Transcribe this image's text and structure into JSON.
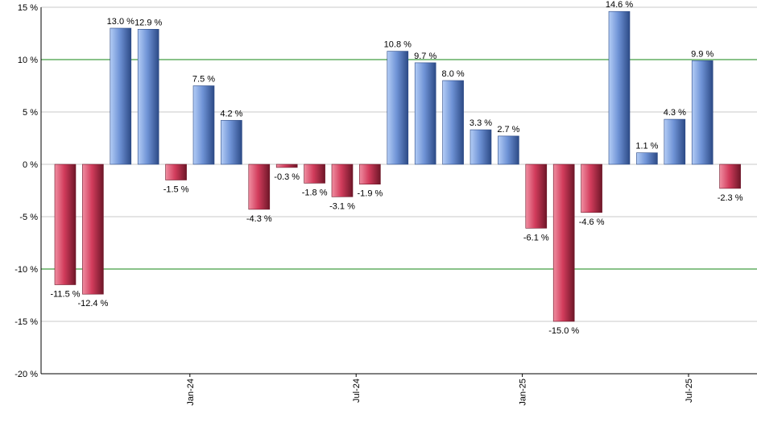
{
  "chart_data": {
    "type": "bar",
    "title": "",
    "xlabel": "",
    "ylabel": "",
    "ylim": [
      -20,
      15
    ],
    "y_ticks": [
      15,
      10,
      5,
      0,
      -5,
      -10,
      -15,
      -20
    ],
    "y_tick_labels": [
      "15 %",
      "10 %",
      "5 %",
      "0 %",
      "-5 %",
      "-10 %",
      "-15 %",
      "-20 %"
    ],
    "reference_lines": [
      10,
      -10
    ],
    "grid": true,
    "x_tick_labels": [
      {
        "label": "Jan-24",
        "after_bar": 4
      },
      {
        "label": "Jul-24",
        "after_bar": 10
      },
      {
        "label": "Jan-25",
        "after_bar": 16
      },
      {
        "label": "Jul-25",
        "after_bar": 22
      }
    ],
    "values": [
      -11.5,
      -12.4,
      13.0,
      12.9,
      -1.5,
      7.5,
      4.2,
      -4.3,
      -0.3,
      -1.8,
      -3.1,
      -1.9,
      10.8,
      9.7,
      8.0,
      3.3,
      2.7,
      -6.1,
      -15.0,
      -4.6,
      14.6,
      1.1,
      4.3,
      9.9,
      -2.3
    ],
    "labels": [
      "-11.5 %",
      "-12.4 %",
      "13.0 %",
      "12.9 %",
      "-1.5 %",
      "7.5 %",
      "4.2 %",
      "-4.3 %",
      "-0.3 %",
      "-1.8 %",
      "-3.1 %",
      "-1.9 %",
      "10.8 %",
      "9.7 %",
      "8.0 %",
      "3.3 %",
      "2.7 %",
      "-6.1 %",
      "-15.0 %",
      "-4.6 %",
      "14.6 %",
      "1.1 %",
      "4.3 %",
      "9.9 %",
      "-2.3 %"
    ],
    "colors": {
      "positive_light": "#b4cdf6",
      "positive_mid": "#6f93d6",
      "positive_dark": "#2c4a86",
      "negative_light": "#f08fa2",
      "negative_mid": "#d23c5c",
      "negative_dark": "#6e1628",
      "grid": "#c8c8c8",
      "reference_line": "#138613",
      "axis": "#000000"
    }
  }
}
